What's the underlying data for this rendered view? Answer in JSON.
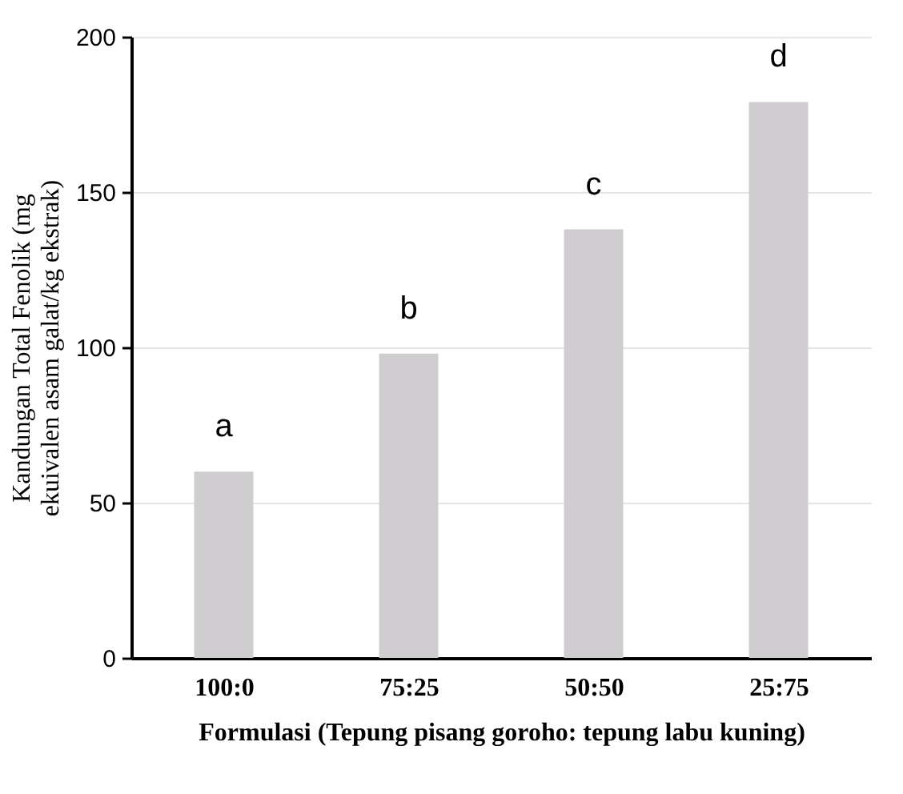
{
  "chart_data": {
    "type": "bar",
    "xlabel": "Formulasi (Tepung pisang goroho: tepung labu kuning)",
    "ylabel": "Kandungan Total Fenolik (mg ekuivalen asam galat/kg ekstrak)",
    "categories": [
      "100:0",
      "75:25",
      "50:50",
      "25:75"
    ],
    "values": [
      60,
      98,
      138,
      179
    ],
    "color": "#cfcdcf",
    "ylim": [
      0,
      200
    ],
    "yticks": [
      0,
      50,
      100,
      150,
      200
    ],
    "grid": "y",
    "annotations": [
      {
        "text": "a",
        "x": "100:0",
        "y": 60
      },
      {
        "text": "b",
        "x": "75:25",
        "y": 98
      },
      {
        "text": "c",
        "x": "50:50",
        "y": 138
      },
      {
        "text": "d",
        "x": "25:75",
        "y": 179
      }
    ]
  }
}
